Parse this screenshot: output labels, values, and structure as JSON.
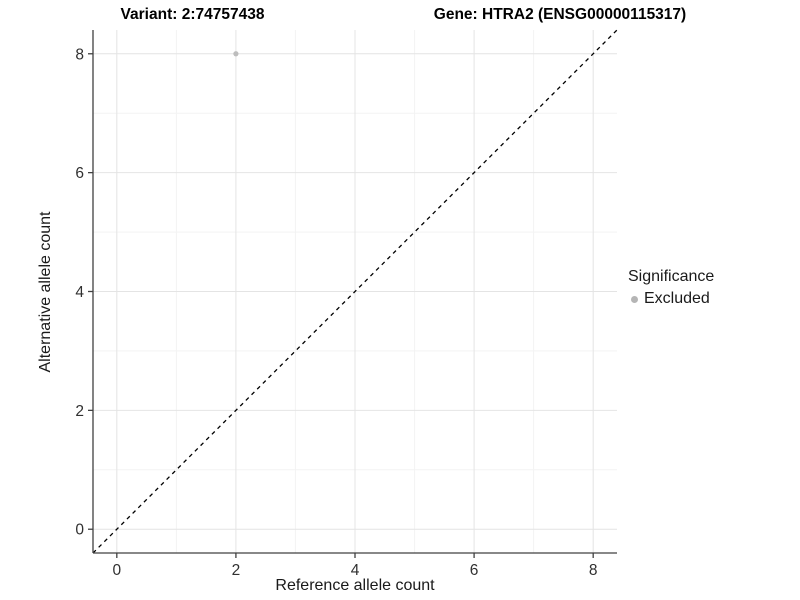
{
  "chart_data": {
    "type": "scatter",
    "title_left": "Variant: 2:74757438",
    "title_right": "Gene: HTRA2 (ENSG00000115317)",
    "xlabel": "Reference allele count",
    "ylabel": "Alternative allele count",
    "xlim": [
      -0.4,
      8.4
    ],
    "ylim": [
      -0.4,
      8.4
    ],
    "xticks": [
      0,
      2,
      4,
      6,
      8
    ],
    "yticks": [
      0,
      2,
      4,
      6,
      8
    ],
    "minor_xticks": [
      1,
      3,
      5,
      7
    ],
    "minor_yticks": [
      1,
      3,
      5,
      7
    ],
    "grid": true,
    "series": [
      {
        "name": "Excluded",
        "color": "#bdbdbd",
        "point_radius": 2.6,
        "points": [
          {
            "x": 2,
            "y": 8
          }
        ]
      }
    ],
    "reference_line": {
      "kind": "identity",
      "style": "dashed",
      "color": "#000000"
    },
    "legend": {
      "title": "Significance",
      "position": "right",
      "entries": [
        {
          "label": "Excluded",
          "color": "#b5b5b5"
        }
      ]
    },
    "colors": {
      "background": "#ffffff",
      "major_grid": "#e4e4e4",
      "minor_grid": "#f3f3f3",
      "axis_line": "#404040",
      "tick_mark": "#404040",
      "tick_label": "#303030"
    }
  }
}
